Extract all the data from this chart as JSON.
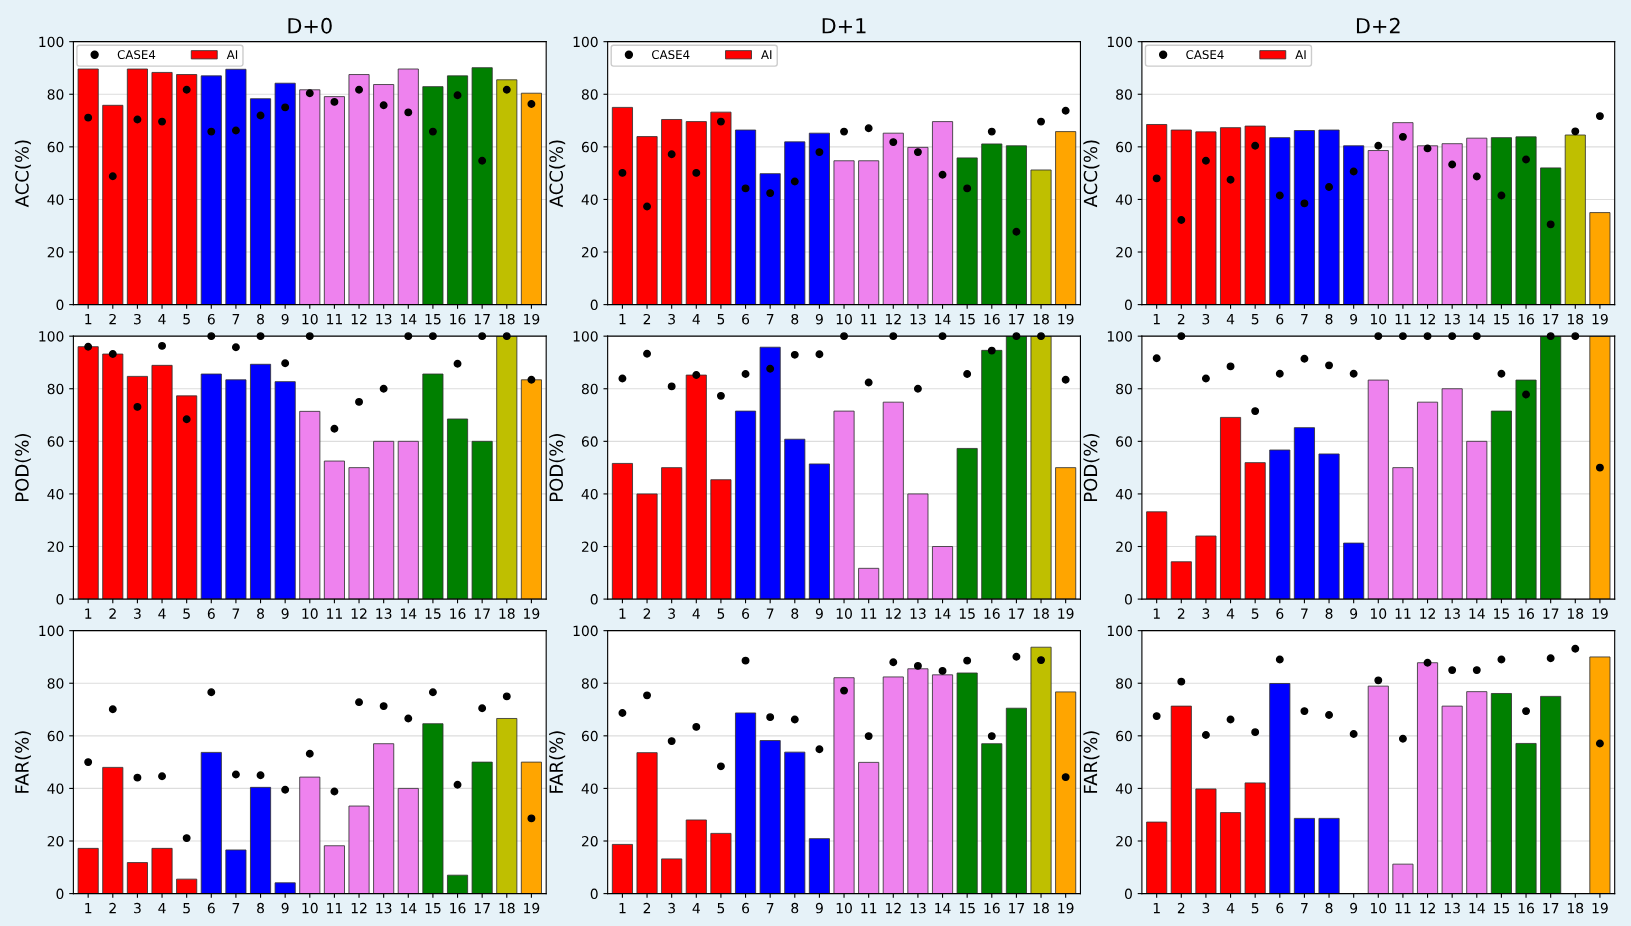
{
  "chart_data": [
    {
      "type": "bar",
      "title": "D+0",
      "ylabel": "ACC(%)",
      "categories": [
        "1",
        "2",
        "3",
        "4",
        "5",
        "6",
        "7",
        "8",
        "9",
        "10",
        "11",
        "12",
        "13",
        "14",
        "15",
        "16",
        "17",
        "18",
        "19"
      ],
      "ylim": [
        0,
        100
      ],
      "yticks": [
        0,
        20,
        40,
        60,
        80,
        100
      ],
      "grid": "y",
      "legend": "top left",
      "series": [
        {
          "name": "CASE4",
          "type": "scatter",
          "marker": "circle",
          "color": "#000000",
          "values": [
            71.1,
            48.8,
            70.4,
            69.6,
            81.7,
            65.8,
            66.2,
            71.9,
            75.0,
            80.4,
            77.1,
            81.7,
            75.8,
            73.1,
            65.8,
            79.6,
            54.7,
            81.7,
            76.3
          ]
        },
        {
          "name": "AI",
          "color": "#ff0000",
          "colors": [
            "#ff0000",
            "#ff0000",
            "#ff0000",
            "#ff0000",
            "#ff0000",
            "#0000ff",
            "#0000ff",
            "#0000ff",
            "#0000ff",
            "#ee82ee",
            "#ee82ee",
            "#ee82ee",
            "#ee82ee",
            "#ee82ee",
            "#008000",
            "#008000",
            "#008000",
            "#bfbf00",
            "#ffa500"
          ],
          "values": [
            89.6,
            75.8,
            89.6,
            88.3,
            87.5,
            87.0,
            89.5,
            78.3,
            84.2,
            81.7,
            79.1,
            87.5,
            83.7,
            89.6,
            82.9,
            87.0,
            90.1,
            85.5,
            80.4
          ]
        }
      ]
    },
    {
      "type": "bar",
      "title": "D+1",
      "ylabel": "ACC(%)",
      "categories": [
        "1",
        "2",
        "3",
        "4",
        "5",
        "6",
        "7",
        "8",
        "9",
        "10",
        "11",
        "12",
        "13",
        "14",
        "15",
        "16",
        "17",
        "18",
        "19"
      ],
      "ylim": [
        0,
        100
      ],
      "yticks": [
        0,
        20,
        40,
        60,
        80,
        100
      ],
      "grid": "y",
      "legend": "top left",
      "series": [
        {
          "name": "CASE4",
          "type": "scatter",
          "marker": "circle",
          "color": "#000000",
          "values": [
            50.1,
            37.3,
            57.2,
            50.1,
            69.6,
            44.2,
            42.4,
            46.8,
            58.0,
            65.8,
            67.1,
            61.8,
            58.0,
            49.4,
            44.2,
            65.8,
            27.7,
            69.6,
            73.7
          ]
        },
        {
          "name": "AI",
          "color": "#ff0000",
          "colors": [
            "#ff0000",
            "#ff0000",
            "#ff0000",
            "#ff0000",
            "#ff0000",
            "#0000ff",
            "#0000ff",
            "#0000ff",
            "#0000ff",
            "#ee82ee",
            "#ee82ee",
            "#ee82ee",
            "#ee82ee",
            "#ee82ee",
            "#008000",
            "#008000",
            "#008000",
            "#bfbf00",
            "#ffa500"
          ],
          "values": [
            75.0,
            63.9,
            70.4,
            69.6,
            73.2,
            66.4,
            49.8,
            61.9,
            65.2,
            54.7,
            54.7,
            65.2,
            59.8,
            69.6,
            55.8,
            61.1,
            60.4,
            51.2,
            65.8
          ]
        }
      ]
    },
    {
      "type": "bar",
      "title": "D+2",
      "ylabel": "ACC(%)",
      "categories": [
        "1",
        "2",
        "3",
        "4",
        "5",
        "6",
        "7",
        "8",
        "9",
        "10",
        "11",
        "12",
        "13",
        "14",
        "15",
        "16",
        "17",
        "18",
        "19"
      ],
      "ylim": [
        0,
        100
      ],
      "yticks": [
        0,
        20,
        40,
        60,
        80,
        100
      ],
      "grid": "y",
      "legend": "top left",
      "series": [
        {
          "name": "CASE4",
          "type": "scatter",
          "marker": "circle",
          "color": "#000000",
          "values": [
            48.0,
            32.2,
            54.7,
            47.5,
            60.4,
            41.5,
            38.5,
            44.7,
            50.6,
            60.4,
            63.8,
            59.4,
            53.3,
            48.7,
            41.5,
            55.2,
            30.5,
            65.9,
            71.7
          ]
        },
        {
          "name": "AI",
          "color": "#ff0000",
          "colors": [
            "#ff0000",
            "#ff0000",
            "#ff0000",
            "#ff0000",
            "#ff0000",
            "#0000ff",
            "#0000ff",
            "#0000ff",
            "#0000ff",
            "#ee82ee",
            "#ee82ee",
            "#ee82ee",
            "#ee82ee",
            "#ee82ee",
            "#008000",
            "#008000",
            "#008000",
            "#bfbf00",
            "#ffa500"
          ],
          "values": [
            68.5,
            66.4,
            65.7,
            67.3,
            67.9,
            63.5,
            66.2,
            66.4,
            60.4,
            58.6,
            69.2,
            60.4,
            61.2,
            63.3,
            63.5,
            63.8,
            52.0,
            64.5,
            35.0
          ]
        }
      ]
    },
    {
      "type": "bar",
      "ylabel": "POD(%)",
      "categories": [
        "1",
        "2",
        "3",
        "4",
        "5",
        "6",
        "7",
        "8",
        "9",
        "10",
        "11",
        "12",
        "13",
        "14",
        "15",
        "16",
        "17",
        "18",
        "19"
      ],
      "ylim": [
        0,
        100
      ],
      "yticks": [
        0,
        20,
        40,
        60,
        80,
        100
      ],
      "grid": "y",
      "series": [
        {
          "type": "scatter",
          "marker": "circle",
          "color": "#000000",
          "values": [
            96.0,
            93.2,
            73.1,
            96.3,
            68.4,
            100,
            95.8,
            100,
            89.7,
            100,
            64.8,
            75.0,
            80.0,
            100,
            100,
            89.5,
            100,
            100,
            83.4
          ]
        },
        {
          "colors": [
            "#ff0000",
            "#ff0000",
            "#ff0000",
            "#ff0000",
            "#ff0000",
            "#0000ff",
            "#0000ff",
            "#0000ff",
            "#0000ff",
            "#ee82ee",
            "#ee82ee",
            "#ee82ee",
            "#ee82ee",
            "#ee82ee",
            "#008000",
            "#008000",
            "#008000",
            "#bfbf00",
            "#ffa500"
          ],
          "values": [
            96.0,
            93.2,
            84.7,
            88.9,
            77.3,
            85.6,
            83.4,
            89.3,
            82.7,
            71.4,
            52.5,
            50.0,
            60.0,
            60.0,
            85.6,
            68.5,
            60.0,
            100,
            83.4
          ]
        }
      ]
    },
    {
      "type": "bar",
      "ylabel": "POD(%)",
      "categories": [
        "1",
        "2",
        "3",
        "4",
        "5",
        "6",
        "7",
        "8",
        "9",
        "10",
        "11",
        "12",
        "13",
        "14",
        "15",
        "16",
        "17",
        "18",
        "19"
      ],
      "ylim": [
        0,
        100
      ],
      "yticks": [
        0,
        20,
        40,
        60,
        80,
        100
      ],
      "grid": "y",
      "series": [
        {
          "type": "scatter",
          "marker": "circle",
          "color": "#000000",
          "values": [
            83.9,
            93.3,
            80.9,
            85.2,
            77.3,
            85.6,
            87.6,
            92.9,
            93.1,
            100,
            82.4,
            100,
            80.0,
            100,
            85.6,
            94.5,
            100,
            100,
            83.4
          ]
        },
        {
          "colors": [
            "#ff0000",
            "#ff0000",
            "#ff0000",
            "#ff0000",
            "#ff0000",
            "#0000ff",
            "#0000ff",
            "#0000ff",
            "#0000ff",
            "#ee82ee",
            "#ee82ee",
            "#ee82ee",
            "#ee82ee",
            "#ee82ee",
            "#008000",
            "#008000",
            "#008000",
            "#bfbf00",
            "#ffa500"
          ],
          "values": [
            51.6,
            40.0,
            50.0,
            85.2,
            45.4,
            71.5,
            95.8,
            60.8,
            51.4,
            71.5,
            11.7,
            74.9,
            40.0,
            20.0,
            57.3,
            94.6,
            100,
            100,
            50.0
          ]
        }
      ]
    },
    {
      "type": "bar",
      "ylabel": "POD(%)",
      "categories": [
        "1",
        "2",
        "3",
        "4",
        "5",
        "6",
        "7",
        "8",
        "9",
        "10",
        "11",
        "12",
        "13",
        "14",
        "15",
        "16",
        "17",
        "18",
        "19"
      ],
      "ylim": [
        0,
        100
      ],
      "yticks": [
        0,
        20,
        40,
        60,
        80,
        100
      ],
      "grid": "y",
      "series": [
        {
          "type": "scatter",
          "marker": "circle",
          "color": "#000000",
          "values": [
            91.6,
            100,
            83.9,
            88.5,
            71.5,
            85.7,
            91.4,
            88.9,
            85.7,
            100,
            100,
            100,
            100,
            100,
            85.7,
            77.8,
            100,
            100,
            50.0
          ]
        },
        {
          "colors": [
            "#ff0000",
            "#ff0000",
            "#ff0000",
            "#ff0000",
            "#ff0000",
            "#0000ff",
            "#0000ff",
            "#0000ff",
            "#0000ff",
            "#ee82ee",
            "#ee82ee",
            "#ee82ee",
            "#ee82ee",
            "#ee82ee",
            "#008000",
            "#008000",
            "#008000",
            "#bfbf00",
            "#ffa500"
          ],
          "values": [
            33.2,
            14.2,
            24.0,
            69.1,
            51.9,
            56.7,
            65.2,
            55.2,
            21.3,
            83.3,
            50.0,
            74.9,
            80.0,
            60.0,
            71.5,
            83.3,
            100,
            null,
            100
          ]
        }
      ]
    },
    {
      "type": "bar",
      "ylabel": "FAR(%)",
      "categories": [
        "1",
        "2",
        "3",
        "4",
        "5",
        "6",
        "7",
        "8",
        "9",
        "10",
        "11",
        "12",
        "13",
        "14",
        "15",
        "16",
        "17",
        "18",
        "19"
      ],
      "ylim": [
        0,
        100
      ],
      "yticks": [
        0,
        20,
        40,
        60,
        80,
        100
      ],
      "grid": "y",
      "series": [
        {
          "type": "scatter",
          "marker": "circle",
          "color": "#000000",
          "values": [
            50.0,
            70.1,
            44.1,
            44.6,
            21.1,
            76.6,
            45.3,
            45.0,
            39.5,
            53.2,
            38.8,
            72.8,
            71.3,
            66.6,
            76.6,
            41.4,
            70.5,
            75.0,
            28.6
          ]
        },
        {
          "colors": [
            "#ff0000",
            "#ff0000",
            "#ff0000",
            "#ff0000",
            "#ff0000",
            "#0000ff",
            "#0000ff",
            "#0000ff",
            "#0000ff",
            "#ee82ee",
            "#ee82ee",
            "#ee82ee",
            "#ee82ee",
            "#ee82ee",
            "#008000",
            "#008000",
            "#008000",
            "#bfbf00",
            "#ffa500"
          ],
          "values": [
            17.2,
            48.0,
            11.8,
            17.2,
            5.5,
            53.7,
            16.6,
            40.4,
            4.1,
            44.3,
            18.2,
            33.3,
            57.0,
            40.0,
            64.6,
            7.0,
            50.0,
            66.6,
            50.0
          ]
        }
      ]
    },
    {
      "type": "bar",
      "ylabel": "FAR(%)",
      "categories": [
        "1",
        "2",
        "3",
        "4",
        "5",
        "6",
        "7",
        "8",
        "9",
        "10",
        "11",
        "12",
        "13",
        "14",
        "15",
        "16",
        "17",
        "18",
        "19"
      ],
      "ylim": [
        0,
        100
      ],
      "yticks": [
        0,
        20,
        40,
        60,
        80,
        100
      ],
      "grid": "y",
      "series": [
        {
          "type": "scatter",
          "marker": "circle",
          "color": "#000000",
          "values": [
            68.7,
            75.4,
            58.0,
            63.4,
            48.4,
            88.6,
            67.1,
            66.2,
            54.9,
            77.2,
            59.9,
            88.0,
            86.6,
            84.7,
            88.6,
            59.9,
            90.1,
            88.8,
            44.3
          ]
        },
        {
          "colors": [
            "#ff0000",
            "#ff0000",
            "#ff0000",
            "#ff0000",
            "#ff0000",
            "#0000ff",
            "#0000ff",
            "#0000ff",
            "#0000ff",
            "#ee82ee",
            "#ee82ee",
            "#ee82ee",
            "#ee82ee",
            "#ee82ee",
            "#008000",
            "#008000",
            "#008000",
            "#bfbf00",
            "#ffa500"
          ],
          "values": [
            18.7,
            53.6,
            13.2,
            28.0,
            22.9,
            68.7,
            58.2,
            53.8,
            20.9,
            82.1,
            49.9,
            82.4,
            85.5,
            83.2,
            83.9,
            57.0,
            70.5,
            93.7,
            76.7
          ]
        }
      ]
    },
    {
      "type": "bar",
      "ylabel": "FAR(%)",
      "categories": [
        "1",
        "2",
        "3",
        "4",
        "5",
        "6",
        "7",
        "8",
        "9",
        "10",
        "11",
        "12",
        "13",
        "14",
        "15",
        "16",
        "17",
        "18",
        "19"
      ],
      "ylim": [
        0,
        100
      ],
      "yticks": [
        0,
        20,
        40,
        60,
        80,
        100
      ],
      "grid": "y",
      "series": [
        {
          "type": "scatter",
          "marker": "circle",
          "color": "#000000",
          "values": [
            67.5,
            80.6,
            60.3,
            66.2,
            61.4,
            89.0,
            69.4,
            67.9,
            60.7,
            81.1,
            58.9,
            87.8,
            85.0,
            85.0,
            89.0,
            69.4,
            89.5,
            93.1,
            57.1
          ]
        },
        {
          "colors": [
            "#ff0000",
            "#ff0000",
            "#ff0000",
            "#ff0000",
            "#ff0000",
            "#0000ff",
            "#0000ff",
            "#0000ff",
            "#0000ff",
            "#ee82ee",
            "#ee82ee",
            "#ee82ee",
            "#ee82ee",
            "#ee82ee",
            "#008000",
            "#008000",
            "#008000",
            "#bfbf00",
            "#ffa500"
          ],
          "values": [
            27.2,
            71.3,
            39.8,
            30.8,
            42.1,
            79.9,
            28.6,
            28.6,
            null,
            78.9,
            11.2,
            87.8,
            71.3,
            76.8,
            76.1,
            57.1,
            75.0,
            null,
            90.0
          ]
        }
      ]
    }
  ]
}
